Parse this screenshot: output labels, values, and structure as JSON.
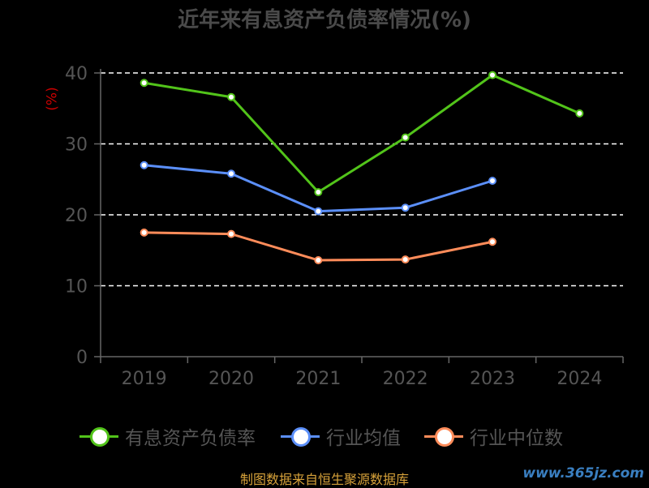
{
  "chart_data": {
    "type": "line",
    "title": "近年来有息资产负债率情况(%)",
    "ylabel": "(%)",
    "xlabel": "",
    "categories": [
      "2019",
      "2020",
      "2021",
      "2022",
      "2023",
      "2024"
    ],
    "ylim": [
      0,
      40
    ],
    "yticks": [
      0,
      10,
      20,
      30,
      40
    ],
    "grid": true,
    "legend_position": "bottom",
    "series": [
      {
        "name": "有息资产负债率",
        "color": "#52c41a",
        "values": [
          38.6,
          36.6,
          23.2,
          30.9,
          39.7,
          34.3
        ]
      },
      {
        "name": "行业均值",
        "color": "#5b8ff9",
        "values": [
          27.0,
          25.8,
          20.5,
          21.0,
          24.8,
          null
        ]
      },
      {
        "name": "行业中位数",
        "color": "#ff8c5a",
        "values": [
          17.5,
          17.3,
          13.6,
          13.7,
          16.2,
          null
        ]
      }
    ]
  },
  "footer": {
    "source": "制图数据来自恒生聚源数据库",
    "watermark": "www.365jz.com"
  }
}
